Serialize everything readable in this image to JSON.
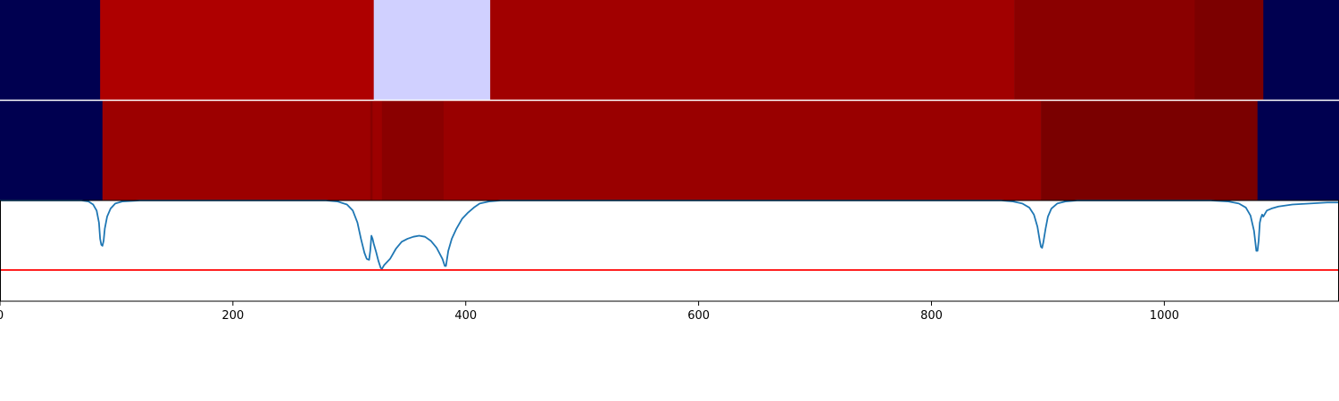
{
  "chart_data": [
    {
      "type": "heatmap",
      "title": "",
      "xlim": [
        0,
        1150
      ],
      "segments": [
        {
          "start": 0,
          "end": 86,
          "color": "#000050"
        },
        {
          "start": 86,
          "end": 321,
          "color": "#ae0000"
        },
        {
          "start": 321,
          "end": 421,
          "color": "#d0d0ff"
        },
        {
          "start": 421,
          "end": 871,
          "color": "#a10000"
        },
        {
          "start": 871,
          "end": 1026,
          "color": "#8a0000"
        },
        {
          "start": 1026,
          "end": 1085,
          "color": "#7c0000"
        },
        {
          "start": 1085,
          "end": 1150,
          "color": "#000050"
        }
      ]
    },
    {
      "type": "heatmap",
      "title": "",
      "xlim": [
        0,
        1150
      ],
      "segments": [
        {
          "start": 0,
          "end": 88,
          "color": "#000050"
        },
        {
          "start": 88,
          "end": 318,
          "color": "#9c0000"
        },
        {
          "start": 318,
          "end": 320,
          "color": "#880000"
        },
        {
          "start": 320,
          "end": 328,
          "color": "#9c0000"
        },
        {
          "start": 328,
          "end": 381,
          "color": "#8a0000"
        },
        {
          "start": 381,
          "end": 894,
          "color": "#990000"
        },
        {
          "start": 894,
          "end": 1080,
          "color": "#7a0000"
        },
        {
          "start": 1080,
          "end": 1150,
          "color": "#000050"
        }
      ]
    },
    {
      "type": "line",
      "title": "",
      "xlabel": "",
      "ylabel": "",
      "xlim": [
        0,
        1150
      ],
      "ylim": [
        0,
        1
      ],
      "xticks": [
        0,
        200,
        400,
        600,
        800,
        1000
      ],
      "xtick_labels": [
        "0",
        "200",
        "400",
        "600",
        "800",
        "1000"
      ],
      "threshold": {
        "value": 0.31,
        "color": "#ff0000"
      },
      "series": [
        {
          "color": "#1f77b4",
          "points": [
            [
              0,
              1.0
            ],
            [
              70,
              1.0
            ],
            [
              76,
              0.99
            ],
            [
              80,
              0.96
            ],
            [
              83,
              0.9
            ],
            [
              85,
              0.78
            ],
            [
              86,
              0.62
            ],
            [
              87,
              0.56
            ],
            [
              88,
              0.55
            ],
            [
              89,
              0.6
            ],
            [
              90,
              0.72
            ],
            [
              92,
              0.84
            ],
            [
              95,
              0.92
            ],
            [
              99,
              0.97
            ],
            [
              105,
              0.99
            ],
            [
              120,
              1.0
            ],
            [
              280,
              1.0
            ],
            [
              290,
              0.99
            ],
            [
              298,
              0.96
            ],
            [
              303,
              0.9
            ],
            [
              307,
              0.78
            ],
            [
              310,
              0.62
            ],
            [
              313,
              0.48
            ],
            [
              315,
              0.42
            ],
            [
              317,
              0.41
            ],
            [
              318,
              0.5
            ],
            [
              319,
              0.65
            ],
            [
              320,
              0.62
            ],
            [
              321,
              0.57
            ],
            [
              323,
              0.49
            ],
            [
              325,
              0.4
            ],
            [
              327,
              0.33
            ],
            [
              328,
              0.32
            ],
            [
              330,
              0.36
            ],
            [
              335,
              0.42
            ],
            [
              340,
              0.52
            ],
            [
              345,
              0.59
            ],
            [
              350,
              0.62
            ],
            [
              355,
              0.64
            ],
            [
              360,
              0.65
            ],
            [
              365,
              0.64
            ],
            [
              370,
              0.6
            ],
            [
              375,
              0.53
            ],
            [
              380,
              0.42
            ],
            [
              382,
              0.35
            ],
            [
              383,
              0.35
            ],
            [
              385,
              0.5
            ],
            [
              388,
              0.62
            ],
            [
              392,
              0.72
            ],
            [
              397,
              0.82
            ],
            [
              402,
              0.88
            ],
            [
              407,
              0.93
            ],
            [
              412,
              0.97
            ],
            [
              420,
              0.99
            ],
            [
              430,
              1.0
            ],
            [
              860,
              1.0
            ],
            [
              870,
              0.99
            ],
            [
              878,
              0.97
            ],
            [
              884,
              0.93
            ],
            [
              888,
              0.86
            ],
            [
              891,
              0.74
            ],
            [
              893,
              0.6
            ],
            [
              894,
              0.54
            ],
            [
              895,
              0.53
            ],
            [
              896,
              0.58
            ],
            [
              898,
              0.72
            ],
            [
              900,
              0.84
            ],
            [
              903,
              0.92
            ],
            [
              908,
              0.97
            ],
            [
              915,
              0.99
            ],
            [
              925,
              1.0
            ],
            [
              1040,
              1.0
            ],
            [
              1055,
              0.99
            ],
            [
              1064,
              0.97
            ],
            [
              1070,
              0.93
            ],
            [
              1074,
              0.85
            ],
            [
              1077,
              0.7
            ],
            [
              1078,
              0.6
            ],
            [
              1079,
              0.5
            ],
            [
              1080,
              0.5
            ],
            [
              1081,
              0.6
            ],
            [
              1082,
              0.78
            ],
            [
              1083,
              0.83
            ],
            [
              1084,
              0.86
            ],
            [
              1085,
              0.84
            ],
            [
              1086,
              0.86
            ],
            [
              1088,
              0.9
            ],
            [
              1092,
              0.92
            ],
            [
              1098,
              0.94
            ],
            [
              1110,
              0.96
            ],
            [
              1125,
              0.97
            ],
            [
              1140,
              0.98
            ],
            [
              1150,
              0.98
            ]
          ]
        }
      ]
    }
  ]
}
